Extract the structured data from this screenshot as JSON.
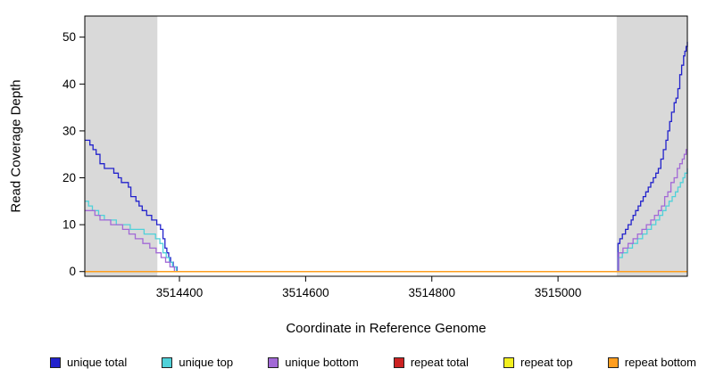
{
  "chart_data": {
    "type": "line",
    "subtype": "step",
    "title": "",
    "xlabel": "Coordinate in Reference Genome",
    "ylabel": "Read Coverage Depth",
    "xticks": [
      3514400,
      3514600,
      3514800,
      3515000
    ],
    "yticks": [
      0,
      10,
      20,
      30,
      40,
      50
    ],
    "x_range": [
      3514250,
      3515205
    ],
    "y_range": [
      -1,
      54.5
    ],
    "ylim": [
      0,
      50
    ],
    "grid": false,
    "legend_position": "bottom",
    "shaded_regions": [
      {
        "x0": 3514250,
        "x1": 3514365,
        "color": "#d9d9d9"
      },
      {
        "x0": 3515093,
        "x1": 3515205,
        "color": "#d9d9d9"
      }
    ],
    "legend": [
      {
        "label": "unique total",
        "color": "#2222cc"
      },
      {
        "label": "unique top",
        "color": "#4fd1d9"
      },
      {
        "label": "unique bottom",
        "color": "#a269d6"
      },
      {
        "label": "repeat total",
        "color": "#cc2222"
      },
      {
        "label": "repeat top",
        "color": "#f2ef1f"
      },
      {
        "label": "repeat bottom",
        "color": "#ff9d1e"
      }
    ],
    "series": [
      {
        "id": "unique-total",
        "name": "unique total",
        "color": "#2222cc",
        "points": [
          [
            3514250,
            28
          ],
          [
            3514258,
            27
          ],
          [
            3514263,
            26
          ],
          [
            3514268,
            25
          ],
          [
            3514274,
            23
          ],
          [
            3514281,
            22
          ],
          [
            3514292,
            22
          ],
          [
            3514296,
            21
          ],
          [
            3514303,
            20
          ],
          [
            3514308,
            19
          ],
          [
            3514314,
            19
          ],
          [
            3514319,
            18
          ],
          [
            3514323,
            16
          ],
          [
            3514331,
            15
          ],
          [
            3514336,
            14
          ],
          [
            3514341,
            13
          ],
          [
            3514348,
            12
          ],
          [
            3514356,
            11
          ],
          [
            3514364,
            10
          ],
          [
            3514370,
            9
          ],
          [
            3514374,
            7
          ],
          [
            3514377,
            5
          ],
          [
            3514380,
            4
          ],
          [
            3514383,
            3
          ],
          [
            3514386,
            2
          ],
          [
            3514390,
            1
          ],
          [
            3514396,
            0
          ],
          [
            3515092,
            0
          ],
          [
            3515095,
            6
          ],
          [
            3515098,
            7
          ],
          [
            3515102,
            8
          ],
          [
            3515107,
            9
          ],
          [
            3515111,
            10
          ],
          [
            3515116,
            11
          ],
          [
            3515119,
            12
          ],
          [
            3515123,
            13
          ],
          [
            3515127,
            14
          ],
          [
            3515131,
            15
          ],
          [
            3515135,
            16
          ],
          [
            3515139,
            17
          ],
          [
            3515143,
            18
          ],
          [
            3515147,
            19
          ],
          [
            3515151,
            20
          ],
          [
            3515155,
            21
          ],
          [
            3515159,
            22
          ],
          [
            3515163,
            24
          ],
          [
            3515167,
            26
          ],
          [
            3515171,
            28
          ],
          [
            3515174,
            30
          ],
          [
            3515177,
            32
          ],
          [
            3515180,
            34
          ],
          [
            3515184,
            36
          ],
          [
            3515187,
            37
          ],
          [
            3515190,
            39
          ],
          [
            3515193,
            42
          ],
          [
            3515196,
            44
          ],
          [
            3515199,
            46
          ],
          [
            3515201,
            47
          ],
          [
            3515203,
            48
          ],
          [
            3515205,
            49
          ]
        ]
      },
      {
        "id": "unique-top",
        "name": "unique top",
        "color": "#4fd1d9",
        "points": [
          [
            3514250,
            15
          ],
          [
            3514256,
            14
          ],
          [
            3514262,
            13
          ],
          [
            3514272,
            12
          ],
          [
            3514281,
            11
          ],
          [
            3514292,
            11
          ],
          [
            3514300,
            10
          ],
          [
            3514312,
            10
          ],
          [
            3514322,
            9
          ],
          [
            3514334,
            9
          ],
          [
            3514344,
            8
          ],
          [
            3514354,
            8
          ],
          [
            3514362,
            7
          ],
          [
            3514369,
            6
          ],
          [
            3514374,
            4
          ],
          [
            3514379,
            3
          ],
          [
            3514384,
            2
          ],
          [
            3514389,
            1
          ],
          [
            3514395,
            0
          ],
          [
            3515093,
            0
          ],
          [
            3515096,
            3
          ],
          [
            3515102,
            4
          ],
          [
            3515110,
            5
          ],
          [
            3515118,
            6
          ],
          [
            3515126,
            7
          ],
          [
            3515134,
            8
          ],
          [
            3515141,
            9
          ],
          [
            3515148,
            10
          ],
          [
            3515155,
            11
          ],
          [
            3515161,
            12
          ],
          [
            3515166,
            13
          ],
          [
            3515171,
            14
          ],
          [
            3515176,
            15
          ],
          [
            3515181,
            16
          ],
          [
            3515186,
            17
          ],
          [
            3515190,
            18
          ],
          [
            3515194,
            19
          ],
          [
            3515198,
            20
          ],
          [
            3515201,
            21
          ],
          [
            3515205,
            22
          ]
        ]
      },
      {
        "id": "unique-bottom",
        "name": "unique bottom",
        "color": "#a269d6",
        "points": [
          [
            3514250,
            13
          ],
          [
            3514259,
            13
          ],
          [
            3514266,
            12
          ],
          [
            3514274,
            11
          ],
          [
            3514283,
            11
          ],
          [
            3514291,
            10
          ],
          [
            3514302,
            10
          ],
          [
            3514310,
            9
          ],
          [
            3514320,
            8
          ],
          [
            3514330,
            7
          ],
          [
            3514342,
            6
          ],
          [
            3514353,
            5
          ],
          [
            3514363,
            4
          ],
          [
            3514371,
            3
          ],
          [
            3514378,
            2
          ],
          [
            3514385,
            1
          ],
          [
            3514392,
            0
          ],
          [
            3515093,
            0
          ],
          [
            3515096,
            4
          ],
          [
            3515103,
            5
          ],
          [
            3515111,
            6
          ],
          [
            3515119,
            7
          ],
          [
            3515126,
            8
          ],
          [
            3515133,
            9
          ],
          [
            3515140,
            10
          ],
          [
            3515147,
            11
          ],
          [
            3515153,
            12
          ],
          [
            3515159,
            13
          ],
          [
            3515164,
            14
          ],
          [
            3515169,
            16
          ],
          [
            3515174,
            17
          ],
          [
            3515179,
            19
          ],
          [
            3515184,
            20
          ],
          [
            3515189,
            22
          ],
          [
            3515193,
            23
          ],
          [
            3515197,
            24
          ],
          [
            3515200,
            25
          ],
          [
            3515203,
            26
          ],
          [
            3515205,
            26
          ]
        ]
      },
      {
        "id": "repeat-total",
        "name": "repeat total",
        "color": "#cc2222",
        "points": [
          [
            3514250,
            0
          ],
          [
            3515205,
            0
          ]
        ]
      },
      {
        "id": "repeat-top",
        "name": "repeat top",
        "color": "#f2ef1f",
        "points": [
          [
            3514250,
            0
          ],
          [
            3515205,
            0
          ]
        ]
      },
      {
        "id": "repeat-bottom",
        "name": "repeat bottom",
        "color": "#ff9d1e",
        "points": [
          [
            3514250,
            0
          ],
          [
            3515205,
            0
          ]
        ]
      }
    ]
  }
}
